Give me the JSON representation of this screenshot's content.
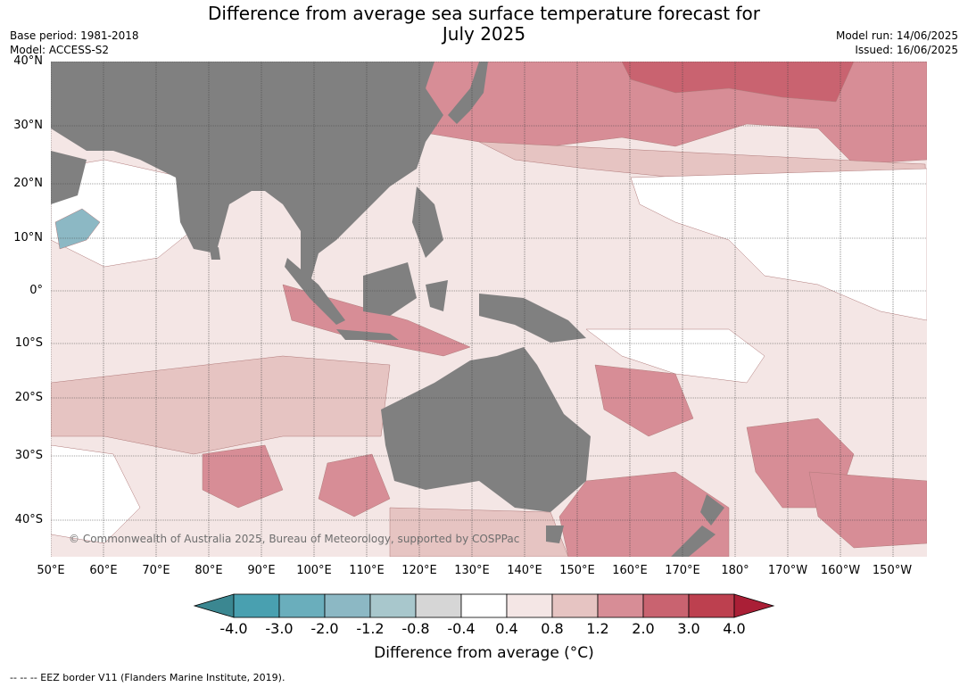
{
  "title_line1": "Difference from average sea surface temperature forecast for",
  "title_line2": "July 2025",
  "base_period": "Base period: 1981-2018",
  "model": "Model: ACCESS-S2",
  "model_run": "Model run: 14/06/2025",
  "issued": "Issued: 16/06/2025",
  "copyright": "© Commonwealth of Australia 2025, Bureau of Meteorology, supported by COSPPac",
  "lat_labels": [
    "40°N",
    "30°N",
    "20°N",
    "10°N",
    "0°",
    "10°S",
    "20°S",
    "30°S",
    "40°S"
  ],
  "lon_labels": [
    "50°E",
    "60°E",
    "70°E",
    "80°E",
    "90°E",
    "100°E",
    "110°E",
    "120°E",
    "130°E",
    "140°E",
    "150°E",
    "160°E",
    "170°E",
    "180°",
    "170°W",
    "160°W",
    "150°W"
  ],
  "colorbar": {
    "ticks": [
      "-4.0",
      "-3.0",
      "-2.0",
      "-1.2",
      "-0.8",
      "-0.4",
      "0.4",
      "0.8",
      "1.2",
      "2.0",
      "3.0",
      "4.0"
    ],
    "colors": [
      "#3b8791",
      "#49a0b0",
      "#6aaebc",
      "#8cb8c4",
      "#a8c7cc",
      "#d6d6d6",
      "#ffffff",
      "#f4e6e5",
      "#e6c4c2",
      "#d78d96",
      "#c96370",
      "#bd404f",
      "#aa1f36"
    ],
    "label": "Difference from average (°C)"
  },
  "footnote": "--  --  -- EEZ border V11 (Flanders Marine Institute, 2019).",
  "land_color": "#808080"
}
